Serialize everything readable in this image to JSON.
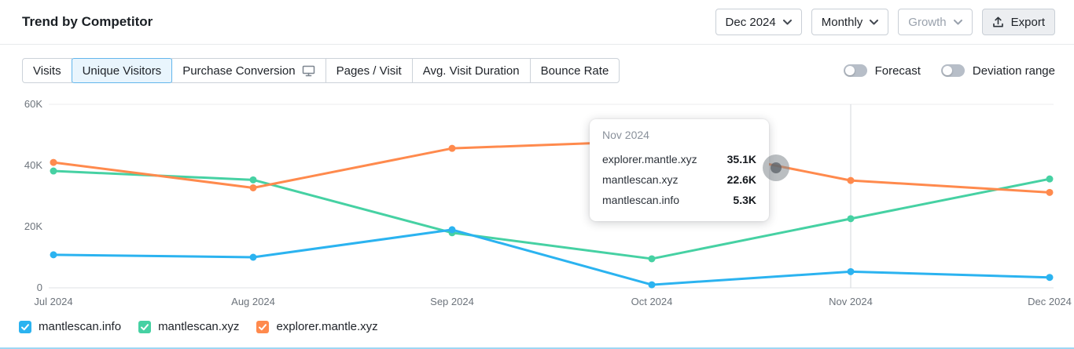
{
  "header": {
    "title": "Trend by Competitor",
    "date_dropdown": "Dec 2024",
    "granularity_dropdown": "Monthly",
    "metric_dropdown": "Growth",
    "export_label": "Export"
  },
  "tabs": [
    {
      "label": "Visits",
      "selected": false
    },
    {
      "label": "Unique Visitors",
      "selected": true
    },
    {
      "label": "Purchase Conversion",
      "selected": false,
      "icon": "monitor-icon"
    },
    {
      "label": "Pages / Visit",
      "selected": false
    },
    {
      "label": "Avg. Visit Duration",
      "selected": false
    },
    {
      "label": "Bounce Rate",
      "selected": false
    }
  ],
  "toggles": [
    {
      "label": "Forecast",
      "state": "off"
    },
    {
      "label": "Deviation range",
      "state": "off"
    }
  ],
  "tooltip": {
    "title": "Nov 2024",
    "rows": [
      {
        "label": "explorer.mantle.xyz",
        "value": "35.1K"
      },
      {
        "label": "mantlescan.xyz",
        "value": "22.6K"
      },
      {
        "label": "mantlescan.info",
        "value": "5.3K"
      }
    ]
  },
  "legend": [
    {
      "label": "mantlescan.info",
      "color": "#2bb3f0",
      "checked": true
    },
    {
      "label": "mantlescan.xyz",
      "color": "#46d1a3",
      "checked": true
    },
    {
      "label": "explorer.mantle.xyz",
      "color": "#ff8a4d",
      "checked": true
    }
  ],
  "chart_data": {
    "type": "line",
    "x": [
      "Jul 2024",
      "Aug 2024",
      "Sep 2024",
      "Oct 2024",
      "Nov 2024",
      "Dec 2024"
    ],
    "series": [
      {
        "name": "mantlescan.info",
        "color": "#2bb3f0",
        "values": [
          10800,
          10000,
          19000,
          1000,
          5300,
          3400
        ]
      },
      {
        "name": "mantlescan.xyz",
        "color": "#46d1a3",
        "values": [
          38200,
          35300,
          18000,
          9500,
          22600,
          35600
        ]
      },
      {
        "name": "explorer.mantle.xyz",
        "color": "#ff8a4d",
        "values": [
          41000,
          32700,
          45600,
          48000,
          35100,
          31200
        ]
      }
    ],
    "y_ticks": [
      "60K",
      "40K",
      "20K",
      "0"
    ],
    "ylim": [
      0,
      60000
    ],
    "grid": "minimal",
    "legend_position": "bottom",
    "hover_index": 4
  }
}
